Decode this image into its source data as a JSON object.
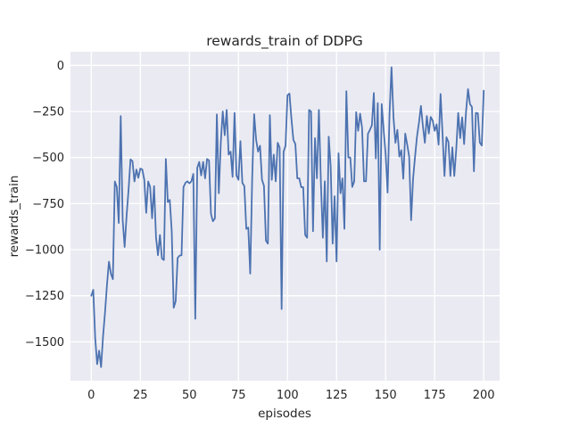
{
  "colors": {
    "figure_background": "#ffffff",
    "plot_background": "#eaeaf2",
    "gridline": "#ffffff",
    "text": "#262626",
    "line": "#4c72b0"
  },
  "chart_data": {
    "type": "line",
    "title": "rewards_train of DDPG",
    "xlabel": "episodes",
    "ylabel": "rewards_train",
    "grid": true,
    "legend_position": "none",
    "x_start": 0,
    "x_step": 1,
    "xlim": [
      -10.6,
      208.1
    ],
    "ylim": [
      -1711,
      74
    ],
    "x_ticks": [
      0,
      25,
      50,
      75,
      100,
      125,
      150,
      175,
      200
    ],
    "x_tick_labels": [
      "0",
      "25",
      "50",
      "75",
      "100",
      "125",
      "150",
      "175",
      "200"
    ],
    "y_ticks": [
      0,
      -250,
      -500,
      -750,
      -1000,
      -1250,
      -1500
    ],
    "y_tick_labels": [
      "0",
      "−250",
      "−500",
      "−750",
      "−1000",
      "−1250",
      "−1500"
    ],
    "line_color": "#4c72b0",
    "line_width": 1.8,
    "values": [
      -1250,
      -1218,
      -1480,
      -1621,
      -1548,
      -1637,
      -1470,
      -1340,
      -1190,
      -1065,
      -1130,
      -1160,
      -630,
      -660,
      -855,
      -275,
      -840,
      -985,
      -815,
      -675,
      -510,
      -520,
      -630,
      -565,
      -610,
      -560,
      -565,
      -620,
      -800,
      -630,
      -660,
      -830,
      -655,
      -935,
      -1030,
      -920,
      -1048,
      -1056,
      -508,
      -742,
      -730,
      -900,
      -1315,
      -1280,
      -1045,
      -1032,
      -1030,
      -660,
      -637,
      -629,
      -640,
      -629,
      -589,
      -1375,
      -556,
      -524,
      -597,
      -524,
      -613,
      -508,
      -516,
      -806,
      -846,
      -830,
      -266,
      -694,
      -419,
      -250,
      -379,
      -242,
      -484,
      -468,
      -605,
      -258,
      -597,
      -621,
      -411,
      -637,
      -655,
      -887,
      -880,
      -1130,
      -613,
      -265,
      -403,
      -468,
      -436,
      -621,
      -653,
      -951,
      -967,
      -270,
      -621,
      -484,
      -629,
      -420,
      -447,
      -1322,
      -468,
      -436,
      -162,
      -153,
      -290,
      -405,
      -427,
      -613,
      -613,
      -661,
      -661,
      -920,
      -935,
      -242,
      -250,
      -900,
      -395,
      -613,
      -242,
      -630,
      -935,
      -629,
      -1064,
      -387,
      -550,
      -967,
      -710,
      -1064,
      -477,
      -694,
      -613,
      -887,
      -140,
      -500,
      -500,
      -660,
      -629,
      -254,
      -355,
      -262,
      -339,
      -629,
      -629,
      -371,
      -350,
      -325,
      -150,
      -505,
      -205,
      -1000,
      -210,
      -350,
      -480,
      -690,
      -260,
      -10,
      -280,
      -420,
      -350,
      -495,
      -460,
      -615,
      -370,
      -430,
      -495,
      -840,
      -615,
      -495,
      -385,
      -310,
      -220,
      -330,
      -420,
      -275,
      -370,
      -280,
      -300,
      -355,
      -320,
      -430,
      -155,
      -370,
      -600,
      -390,
      -415,
      -600,
      -445,
      -600,
      -455,
      -258,
      -395,
      -282,
      -427,
      -250,
      -129,
      -210,
      -226,
      -575,
      -258,
      -260,
      -419,
      -435,
      -137
    ]
  }
}
